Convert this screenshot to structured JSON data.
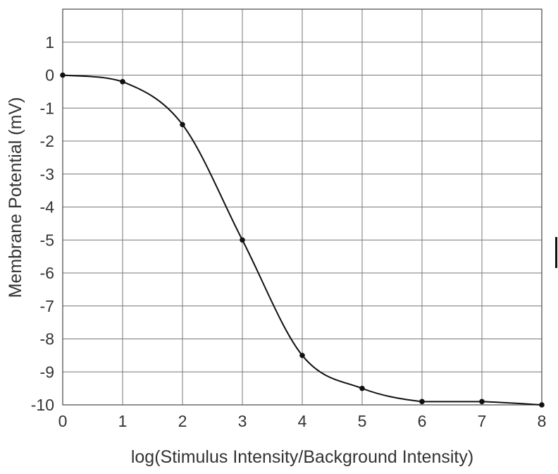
{
  "chart_data": {
    "type": "line",
    "title": "",
    "xlabel": "log(Stimulus Intensity/Background Intensity)",
    "ylabel": "Membrane Potential (mV)",
    "xlim": [
      0,
      8
    ],
    "ylim": [
      -10,
      2
    ],
    "x_ticks": [
      "0",
      "1",
      "2",
      "3",
      "4",
      "5",
      "6",
      "7",
      "8"
    ],
    "y_ticks": [
      "1",
      "0",
      "-1",
      "-2",
      "-3",
      "-4",
      "-5",
      "-6",
      "-7",
      "-8",
      "-9",
      "-10"
    ],
    "grid": true,
    "legend": "none",
    "series": [
      {
        "x": [
          0,
          1,
          2,
          3,
          4,
          5,
          6,
          7,
          8
        ],
        "y": [
          0,
          -0.2,
          -1.5,
          -5,
          -8.5,
          -9.5,
          -9.9,
          -9.9,
          -10
        ],
        "marker": "dot",
        "line": "smooth",
        "color": "#111111"
      }
    ]
  }
}
